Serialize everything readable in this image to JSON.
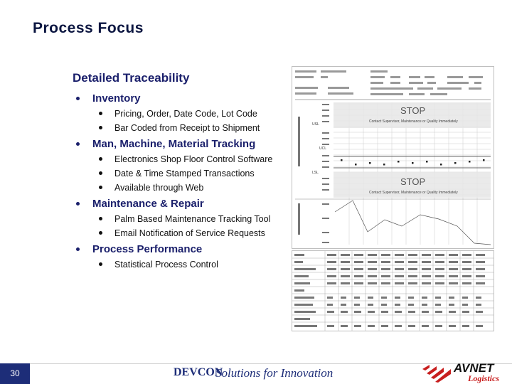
{
  "slide": {
    "title": "Process Focus",
    "heading": "Detailed Traceability",
    "sections": [
      {
        "label": "Inventory",
        "items": [
          "Pricing, Order, Date Code, Lot Code",
          "Bar Coded from Receipt to Shipment"
        ]
      },
      {
        "label": "Man, Machine, Material Tracking",
        "items": [
          "Electronics Shop Floor Control Software",
          "Date & Time Stamped Transactions",
          "Available through Web"
        ]
      },
      {
        "label": "Maintenance & Repair",
        "items": [
          "Palm Based Maintenance Tracking Tool",
          "Email Notification of Service Requests"
        ]
      },
      {
        "label": "Process Performance",
        "items": [
          "Statistical Process Control"
        ]
      }
    ]
  },
  "spc_chart": {
    "stop_label_1": "STOP",
    "stop_note_1": "Contact Supervisor, Maintenance or Quality Immediately",
    "stop_label_2": "STOP",
    "stop_note_2": "Contact Supervisor, Maintenance or Quality Immediately",
    "usl": "USL",
    "lsl": "LSL",
    "ucl": "UCL"
  },
  "footer": {
    "page_number": "30",
    "logo": "DEVCON",
    "tagline": "Solutions for Innovation",
    "brand": "AVNET",
    "brand_sub": "Logistics"
  }
}
